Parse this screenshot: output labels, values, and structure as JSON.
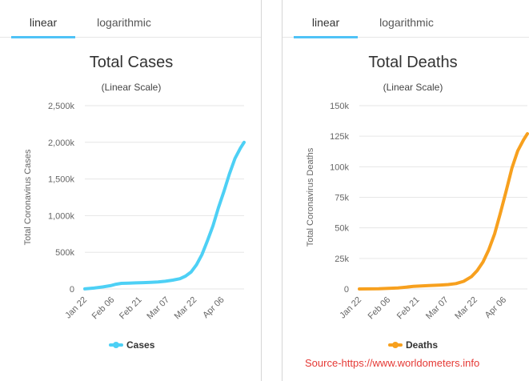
{
  "tabs": [
    "linear",
    "logarithmic"
  ],
  "source": "Source-https://www.worldometers.info",
  "chart_data": [
    {
      "type": "line",
      "title": "Total Cases",
      "subtitle": "(Linear Scale)",
      "ylabel": "Total Coronavirus Cases",
      "yticks": [
        "0",
        "500k",
        "1,000k",
        "1,500k",
        "2,000k",
        "2,500k"
      ],
      "ylim": [
        0,
        2500000
      ],
      "xticks": [
        "Jan 22",
        "Feb 06",
        "Feb 21",
        "Mar 07",
        "Mar 22",
        "Apr 06"
      ],
      "tick_days": [
        0,
        15,
        30,
        45,
        60,
        75
      ],
      "color": "#4dd0f5",
      "series": [
        {
          "name": "Cases",
          "x": [
            0,
            5,
            10,
            14,
            17,
            20,
            24,
            28,
            32,
            36,
            40,
            44,
            48,
            52,
            55,
            58,
            61,
            64,
            67,
            70,
            73,
            76,
            79,
            82,
            85,
            87
          ],
          "values": [
            600,
            12000,
            28000,
            45000,
            64000,
            76000,
            80000,
            83000,
            86000,
            89000,
            95000,
            105000,
            120000,
            140000,
            175000,
            230000,
            330000,
            470000,
            660000,
            860000,
            1110000,
            1330000,
            1570000,
            1780000,
            1920000,
            2000000
          ]
        }
      ]
    },
    {
      "type": "line",
      "title": "Total Deaths",
      "subtitle": "(Linear Scale)",
      "ylabel": "Total Coronavirus Deaths",
      "yticks": [
        "0",
        "25k",
        "50k",
        "75k",
        "100k",
        "125k",
        "150k"
      ],
      "ylim": [
        0,
        150000
      ],
      "xticks": [
        "Jan 22",
        "Feb 06",
        "Feb 21",
        "Mar 07",
        "Mar 22",
        "Apr 06"
      ],
      "tick_days": [
        0,
        15,
        30,
        45,
        60,
        75
      ],
      "color": "#f7a01e",
      "series": [
        {
          "name": "Deaths",
          "x": [
            0,
            10,
            20,
            28,
            36,
            42,
            46,
            50,
            54,
            58,
            61,
            64,
            67,
            70,
            73,
            76,
            79,
            82,
            85,
            87
          ],
          "values": [
            17,
            200,
            800,
            2100,
            2800,
            3200,
            3600,
            4400,
            6200,
            10000,
            15000,
            22000,
            32000,
            45000,
            62000,
            80000,
            99000,
            113000,
            122000,
            127000
          ]
        }
      ]
    }
  ]
}
